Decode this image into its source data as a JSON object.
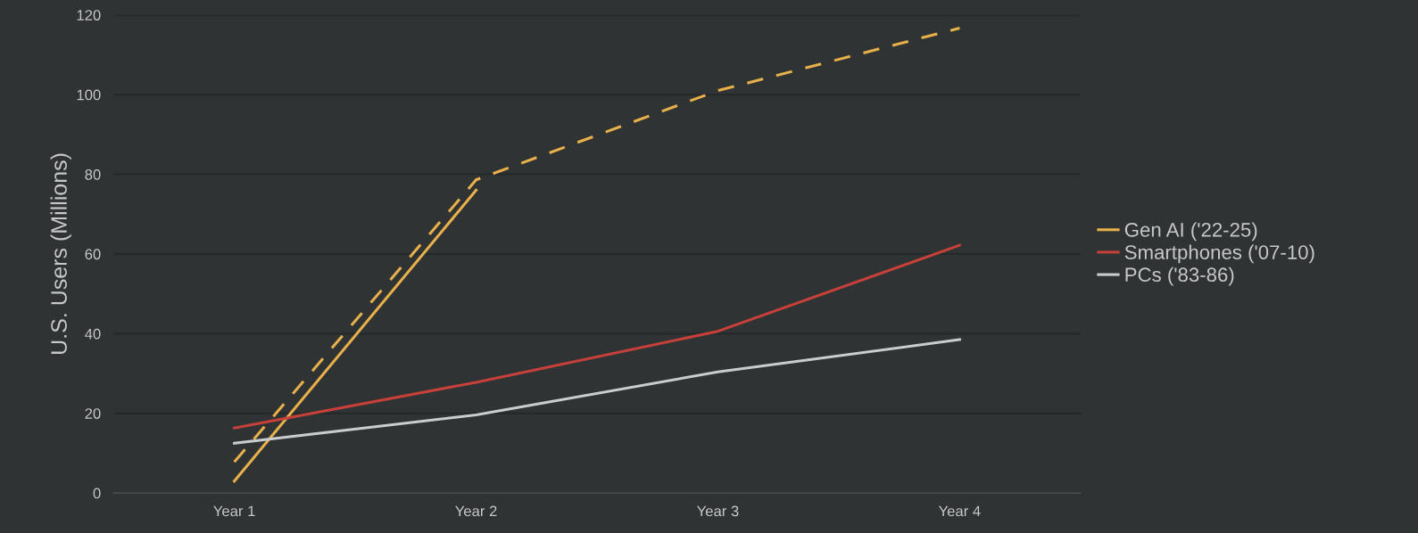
{
  "chart_data": {
    "type": "line",
    "ylabel": "U.S. Users (Millions)",
    "categories": [
      "Year 1",
      "Year 2",
      "Year 3",
      "Year 4"
    ],
    "ylim": [
      0,
      120
    ],
    "yticks": [
      0,
      20,
      40,
      60,
      80,
      100,
      120
    ],
    "grid": "y",
    "legend": "right",
    "marker": "none",
    "series": [
      {
        "name": "Gen AI ('22-25)",
        "color": "#e8b04a",
        "line_style": "solid",
        "values": [
          3,
          76,
          null,
          null
        ]
      },
      {
        "color": "#e8b04a",
        "line_style": "dashed",
        "values": [
          7.8,
          78.6,
          101,
          116.7
        ]
      },
      {
        "name": "Smartphones ('07-10)",
        "color": "#c8403a",
        "line_style": "solid",
        "values": [
          16.3,
          27.8,
          40.6,
          62.2
        ]
      },
      {
        "name": "PCs ('83-86)",
        "color": "#c9cdd0",
        "line_style": "solid",
        "values": [
          12.5,
          19.6,
          30.4,
          38.5
        ]
      }
    ]
  }
}
